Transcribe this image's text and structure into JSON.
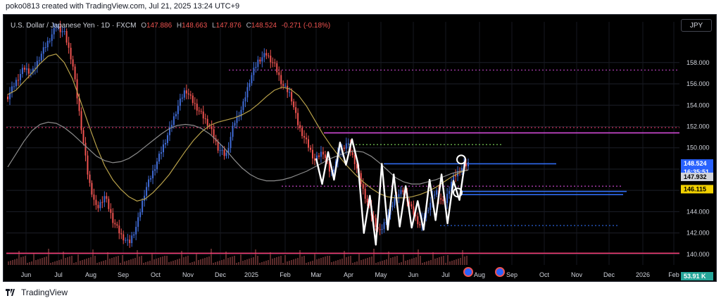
{
  "header": {
    "text": "poko0813 created with TradingView.com, Jul 21, 2025 13:24 UTC+9"
  },
  "symbol": {
    "title": "U.S. Dollar / Japanese Yen · 1D · FXCM",
    "o_key": "O",
    "o": "147.886",
    "h_key": "H",
    "h": "148.663",
    "l_key": "L",
    "l": "147.876",
    "c_key": "C",
    "c": "148.524",
    "change": "-0.271 (-0.18%)"
  },
  "currency_button": "JPY",
  "footer": {
    "brand": "TradingView"
  },
  "colors": {
    "background": "#000000",
    "up": "#26a69a",
    "down": "#ef5350",
    "candle_up": "#3f6bd6",
    "ma_short": "#b8a14a",
    "ma_long": "#8c8c8c",
    "zigzag": "#ffffff",
    "level_blue": "#2f6bf0",
    "level_magenta": "#d24ad6",
    "level_pink": "#ff3f7a"
  },
  "chart_data": {
    "type": "line",
    "y_axis": {
      "ticks": [
        "158.000",
        "156.000",
        "154.000",
        "152.000",
        "150.000",
        "148.000",
        "146.000",
        "144.000",
        "142.000",
        "140.000"
      ],
      "range": [
        139.0,
        160.5
      ]
    },
    "x_axis": {
      "ticks": [
        "Jun",
        "Jul",
        "Aug",
        "Sep",
        "Oct",
        "Nov",
        "Dec",
        "2025",
        "Feb",
        "Mar",
        "Apr",
        "May",
        "Jun",
        "Jul",
        "Aug",
        "Sep",
        "Oct",
        "Nov",
        "Dec",
        "2026",
        "Feb"
      ]
    },
    "price_labels": {
      "last": "148.524",
      "countdown": "16:35:51",
      "ma": "147.932",
      "level": "146.115",
      "volume": "53.91 K"
    },
    "series": [
      {
        "values": [
          154.8,
          156.2,
          157.5,
          157.0,
          158.6,
          160.0,
          161.4,
          160.8,
          158.0,
          152.5,
          147.0,
          144.2,
          145.5,
          143.2,
          141.8,
          141.0,
          142.8,
          146.0,
          147.8,
          149.7,
          151.6,
          153.8,
          155.5,
          154.2,
          153.1,
          152.0,
          150.0,
          149.2,
          152.3,
          153.7,
          156.5,
          158.2,
          158.8,
          157.8,
          155.9,
          155.0,
          152.0,
          150.5,
          148.8,
          149.7,
          147.5,
          149.5,
          150.5,
          148.6,
          146.0,
          143.8,
          142.0,
          143.5,
          145.4,
          146.0,
          144.2,
          142.7,
          144.3,
          146.0,
          144.6,
          147.0,
          148.0,
          148.52
        ]
      },
      {
        "values": [
          155.0,
          155.4,
          156.2,
          157.0,
          157.9,
          158.6,
          158.8,
          158.0,
          156.5,
          154.4,
          152.2,
          150.1,
          148.3,
          147.0,
          146.1,
          145.4,
          145.0,
          145.2,
          145.8,
          146.6,
          147.5,
          148.6,
          149.7,
          150.7,
          151.5,
          152.1,
          152.4,
          152.6,
          152.8,
          153.1,
          153.5,
          154.1,
          154.8,
          155.4,
          155.7,
          155.5,
          154.9,
          153.9,
          152.6,
          151.3,
          150.2,
          149.2,
          148.3,
          147.5,
          146.8,
          146.2,
          145.7,
          145.4,
          145.3,
          145.3,
          145.4,
          145.6,
          145.9,
          146.3,
          146.8,
          147.3,
          147.7,
          147.93
        ]
      },
      {
        "values": [
          148.2,
          149.4,
          150.6,
          151.6,
          152.2,
          152.4,
          152.3,
          151.9,
          151.3,
          150.6,
          149.9,
          149.2,
          148.8,
          148.6,
          148.7,
          149.0,
          149.5,
          150.1,
          150.7,
          151.3,
          151.8,
          152.1,
          152.2,
          152.1,
          151.8,
          151.3,
          150.6,
          149.8,
          148.9,
          148.1,
          147.5,
          147.1,
          146.9,
          146.9,
          147.0,
          147.2,
          147.5,
          147.8,
          148.2,
          148.6,
          149.0,
          149.3,
          149.6,
          149.7,
          149.6,
          149.2,
          148.6,
          147.9,
          147.2,
          146.8,
          146.6,
          146.6,
          146.8,
          147.0,
          147.3,
          147.6,
          147.8,
          147.9
        ]
      }
    ],
    "zigzag": {
      "values": [
        149.0,
        146.6,
        149.6,
        147.0,
        150.5,
        148.4,
        150.8,
        148.5,
        142.0,
        145.5,
        140.9,
        148.5,
        142.3,
        147.5,
        142.6,
        146.4,
        142.5,
        145.0,
        142.3,
        147.0,
        143.2,
        147.5,
        142.9,
        146.9,
        145.1,
        148.9
      ]
    },
    "levels": [
      {
        "value": 151.4,
        "color": "magenta",
        "style": "solid"
      },
      {
        "value": 151.9,
        "color": "pink",
        "style": "dotted"
      },
      {
        "value": 157.3,
        "color": "magenta",
        "style": "dotted"
      },
      {
        "value": 150.3,
        "color": "green",
        "style": "dotted"
      },
      {
        "value": 148.5,
        "color": "blue",
        "style": "solid"
      },
      {
        "value": 146.4,
        "color": "magenta",
        "style": "dotted"
      },
      {
        "value": 145.9,
        "color": "blue",
        "style": "solid"
      },
      {
        "value": 145.6,
        "color": "blue",
        "style": "solid"
      },
      {
        "value": 142.7,
        "color": "blue",
        "style": "dotted"
      },
      {
        "value": 140.1,
        "color": "pink",
        "style": "solid"
      }
    ],
    "markers": [
      148.9,
      145.8
    ]
  }
}
